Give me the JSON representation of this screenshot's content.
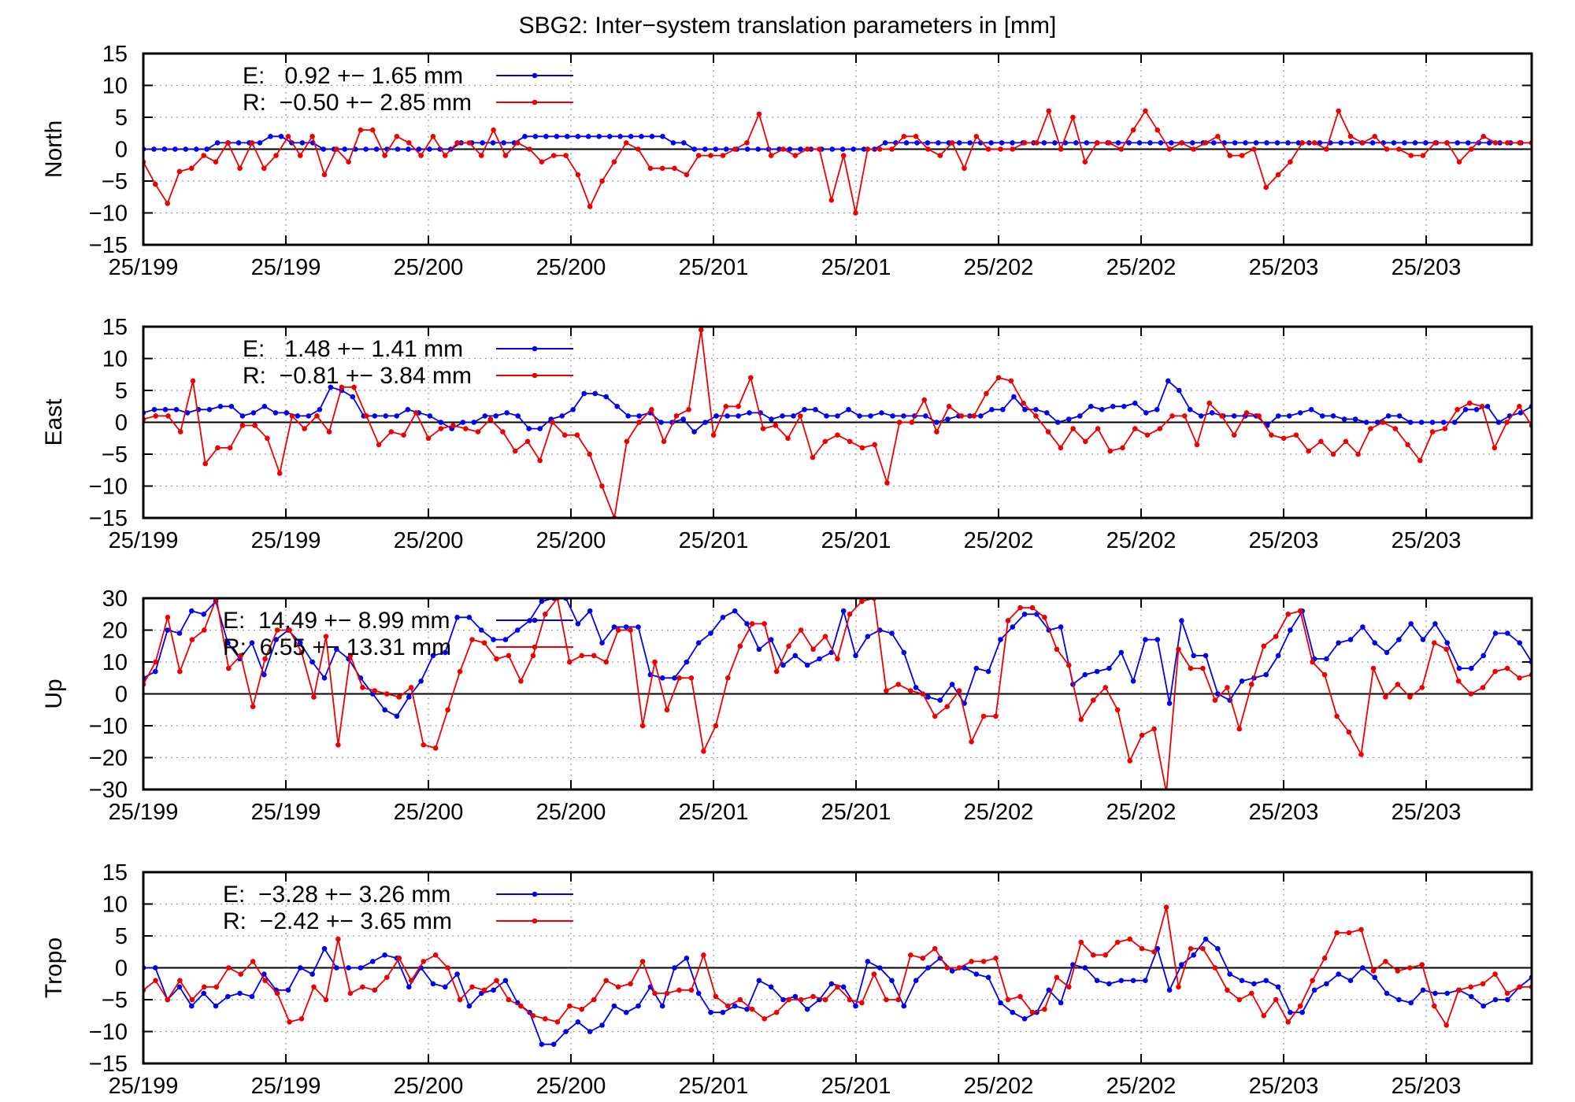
{
  "title": "SBG2: Inter−system translation parameters in [mm]",
  "colors": {
    "E": "#0000ee",
    "R": "#ee0000"
  },
  "chart_data": [
    {
      "type": "line",
      "ylabel": "North",
      "ylim": [
        -15,
        15
      ],
      "yticks": [
        "15",
        "10",
        "5",
        "0",
        "−5",
        "−10",
        "−15"
      ],
      "ytick_values": [
        15,
        10,
        5,
        0,
        -5,
        -10,
        -15
      ],
      "xtick_labels": [
        "25/199",
        "25/199",
        "25/200",
        "25/200",
        "25/201",
        "25/201",
        "25/202",
        "25/202",
        "25/203",
        "25/203"
      ],
      "grid": true,
      "legend_position": "top-left",
      "legend": [
        "E:   0.92 +− 1.65 mm",
        "R:  −0.50 +− 2.85 mm"
      ],
      "series": [
        {
          "name": "E",
          "values": [
            0,
            0,
            0,
            0,
            0,
            0,
            0,
            1,
            1,
            1,
            1,
            1,
            2,
            2,
            1,
            1,
            1,
            0,
            0,
            0,
            0,
            0,
            0,
            0,
            0,
            0,
            0,
            0,
            0,
            0,
            1,
            1,
            1,
            1,
            1,
            1,
            2,
            2,
            2,
            2,
            2,
            2,
            2,
            2,
            2,
            2,
            2,
            2,
            2,
            2,
            1,
            1,
            0,
            0,
            0,
            0,
            0,
            0,
            0,
            0,
            0,
            0,
            0,
            0,
            0,
            0,
            0,
            0,
            0,
            0,
            1,
            1,
            1,
            1,
            1,
            1,
            1,
            1,
            1,
            1,
            1,
            1,
            1,
            1,
            1,
            1,
            1,
            1,
            1,
            1,
            1,
            1,
            1,
            1,
            1,
            1,
            1,
            1,
            1,
            1,
            1,
            1,
            1,
            1,
            1,
            1,
            1,
            1,
            1,
            1,
            1,
            1,
            1,
            1,
            1,
            1,
            1,
            1,
            1,
            1,
            1,
            1,
            1,
            1,
            1,
            1,
            1,
            1,
            1,
            1,
            1,
            1
          ]
        },
        {
          "name": "R",
          "values": [
            -2,
            -5.5,
            -8.5,
            -3.5,
            -3,
            -1,
            -2,
            1,
            -3,
            1,
            -3,
            -1,
            2,
            -1,
            2,
            -4,
            0,
            -2,
            3,
            3,
            -1,
            2,
            1,
            -1,
            2,
            -1,
            1,
            1,
            -1,
            3,
            -1,
            1,
            0,
            -2,
            -1,
            -1,
            -4,
            -9,
            -5,
            -2,
            1,
            0,
            -3,
            -3,
            -3,
            -4,
            -1,
            -1,
            -1,
            0,
            1,
            5.5,
            -1,
            0,
            -1,
            0,
            0,
            -8,
            -1,
            -10,
            0,
            0,
            0,
            2,
            2,
            0,
            -1,
            1,
            -3,
            2,
            0,
            0,
            0,
            1,
            1,
            6,
            0,
            5,
            -2,
            1,
            1,
            0,
            3,
            6,
            3,
            0,
            1,
            0,
            1,
            2,
            -1,
            -1,
            0,
            -6,
            -4,
            -2,
            1,
            1,
            0,
            6,
            2,
            1,
            2,
            0,
            0,
            -1,
            -1,
            1,
            1,
            -2,
            0,
            2,
            1,
            1,
            1,
            1
          ]
        }
      ]
    },
    {
      "type": "line",
      "ylabel": "East",
      "ylim": [
        -15,
        15
      ],
      "yticks": [
        "15",
        "10",
        "5",
        "0",
        "−5",
        "−10",
        "−15"
      ],
      "ytick_values": [
        15,
        10,
        5,
        0,
        -5,
        -10,
        -15
      ],
      "xtick_labels": [
        "25/199",
        "25/199",
        "25/200",
        "25/200",
        "25/201",
        "25/201",
        "25/202",
        "25/202",
        "25/203",
        "25/203"
      ],
      "grid": true,
      "legend_position": "top-left",
      "legend": [
        "E:   1.48 +− 1.41 mm",
        "R:  −0.81 +− 3.84 mm"
      ],
      "series": [
        {
          "name": "E",
          "values": [
            1.5,
            2,
            2,
            2,
            1.5,
            2,
            2,
            2.5,
            2.5,
            1,
            1.5,
            2.5,
            1.5,
            1.5,
            1,
            1,
            2,
            5.5,
            5,
            4,
            1,
            1,
            1,
            1,
            2,
            1.5,
            1,
            0,
            -1,
            0,
            0,
            1,
            1,
            1.5,
            1,
            -1,
            -1,
            0.5,
            1,
            2,
            4.5,
            4.5,
            4,
            2.5,
            1,
            1,
            1.5,
            0,
            0,
            0.5,
            -1.5,
            0,
            1,
            1,
            1,
            1.5,
            1.5,
            0.5,
            1,
            1,
            2,
            2,
            1,
            1,
            2,
            1,
            1,
            1.5,
            1,
            1,
            1,
            1,
            0,
            0.5,
            1,
            1,
            1,
            2,
            2,
            4,
            2,
            2,
            1.5,
            0,
            0.5,
            1,
            2.5,
            2,
            2.5,
            2.5,
            3,
            1.5,
            2,
            6.5,
            5,
            2,
            1,
            1.5,
            1,
            1,
            1,
            1,
            -0.5,
            1,
            1,
            1.5,
            2,
            1,
            1,
            0.5,
            0.5,
            0,
            0,
            1,
            1,
            0,
            0,
            0,
            0,
            0,
            2,
            2,
            2.5,
            0,
            1,
            1.5,
            2.5
          ]
        },
        {
          "name": "R",
          "values": [
            0.5,
            1,
            1,
            -1.5,
            6.5,
            -6.5,
            -4,
            -4,
            -0.5,
            -0.5,
            -2.5,
            -8,
            1,
            -1,
            1,
            -1.5,
            5.5,
            5.5,
            1,
            -3.5,
            -1.5,
            -2,
            1.5,
            -2.5,
            -1,
            -0.5,
            -1,
            -1.5,
            0.5,
            -1.5,
            -4.5,
            -3,
            -6,
            0,
            -2,
            -2,
            -5,
            -10,
            -15,
            -3,
            0,
            2,
            -3,
            1,
            2,
            14.5,
            -2,
            2.5,
            2.5,
            7,
            -1,
            -0.5,
            -2.5,
            1,
            -5.5,
            -3,
            -2,
            -3,
            -4,
            -3.5,
            -9.5,
            0,
            0,
            3.5,
            -1.5,
            2.5,
            1,
            1,
            4.5,
            7,
            6.5,
            3,
            1,
            -1.5,
            -4,
            -1,
            -3,
            -1,
            -4.5,
            -4,
            -1,
            -2,
            -1,
            1,
            1,
            -3.5,
            3,
            1,
            -2,
            1.5,
            1,
            -2,
            -2.5,
            -2,
            -4.5,
            -3,
            -5,
            -3,
            -5,
            -1,
            0,
            -1,
            -3.5,
            -6,
            -1.5,
            -1,
            2,
            3,
            2.5,
            -4,
            0,
            2.5,
            -0.5
          ]
        }
      ]
    },
    {
      "type": "line",
      "ylabel": "Up",
      "ylim": [
        -30,
        30
      ],
      "yticks": [
        "30",
        "20",
        "10",
        "0",
        "−10",
        "−20",
        "−30"
      ],
      "ytick_values": [
        30,
        20,
        10,
        0,
        -10,
        -20,
        -30
      ],
      "xtick_labels": [
        "25/199",
        "25/199",
        "25/200",
        "25/200",
        "25/201",
        "25/201",
        "25/202",
        "25/202",
        "25/203",
        "25/203"
      ],
      "grid": true,
      "legend_position": "top-left",
      "legend": [
        "E:  14.49 +− 8.99 mm",
        "R:  6.55 +− 13.31 mm"
      ],
      "series": [
        {
          "name": "E",
          "values": [
            5,
            7,
            20,
            19,
            26,
            25,
            29,
            16,
            11,
            16,
            6,
            17,
            20,
            16,
            10,
            5,
            14,
            11,
            5,
            0,
            -5,
            -7,
            -1,
            4,
            12,
            13,
            24,
            24,
            20,
            17,
            17,
            20,
            23,
            29,
            30,
            30,
            22,
            26,
            16,
            21,
            21,
            21,
            6,
            5,
            5,
            10,
            16,
            19,
            24,
            26,
            22,
            14,
            17,
            9,
            12,
            9,
            11,
            13,
            26,
            12,
            18,
            20,
            19,
            13,
            2,
            -1,
            -2,
            3,
            -3,
            8,
            7,
            17,
            21,
            25,
            25,
            20,
            21,
            3,
            6,
            7,
            8,
            13,
            4,
            17,
            17,
            -3,
            23,
            12,
            12,
            0,
            -2,
            4,
            5,
            6,
            12,
            20,
            26,
            11,
            11,
            16,
            17,
            21,
            16,
            13,
            17,
            22,
            17,
            22,
            16,
            8,
            8,
            12,
            19,
            19,
            16,
            10
          ]
        },
        {
          "name": "R",
          "values": [
            3,
            10,
            24,
            7,
            17,
            20,
            30,
            8,
            12,
            -4,
            11,
            20,
            20,
            13,
            -1,
            18,
            -16,
            12,
            2,
            1,
            0,
            -1,
            2,
            -16,
            -17,
            -5,
            7,
            17,
            16,
            11,
            12,
            4,
            12,
            25,
            30,
            10,
            12,
            12,
            10,
            20,
            20,
            -10,
            10,
            -5,
            5,
            5,
            -18,
            -10,
            5,
            15,
            22,
            22,
            7,
            15,
            20,
            14,
            18,
            11,
            25,
            29,
            30,
            1,
            3,
            1,
            0,
            -7,
            -4,
            1,
            -15,
            -7,
            -7,
            23,
            27,
            27,
            24,
            14,
            9,
            -8,
            -2,
            2,
            -5,
            -21,
            -13,
            -11,
            -31,
            14,
            8,
            8,
            -2,
            2,
            -11,
            3,
            15,
            18,
            25,
            26,
            10,
            6,
            -7,
            -12,
            -19,
            8,
            -1,
            3,
            -1,
            2,
            16,
            14,
            4,
            0,
            2,
            7,
            8,
            5,
            6
          ]
        }
      ]
    },
    {
      "type": "line",
      "ylabel": "Tropo",
      "ylim": [
        -15,
        15
      ],
      "yticks": [
        "15",
        "10",
        "5",
        "0",
        "−5",
        "−10",
        "−15"
      ],
      "ytick_values": [
        15,
        10,
        5,
        0,
        -5,
        -10,
        -15
      ],
      "xtick_labels": [
        "25/199",
        "25/199",
        "25/200",
        "25/200",
        "25/201",
        "25/201",
        "25/202",
        "25/202",
        "25/203",
        "25/203"
      ],
      "grid": true,
      "legend_position": "top-left",
      "legend": [
        "E:  −3.28 +− 3.26 mm",
        "R:  −2.42 +− 3.65 mm"
      ],
      "series": [
        {
          "name": "E",
          "values": [
            0,
            0,
            -5,
            -3,
            -6,
            -4,
            -6,
            -4.5,
            -4,
            -4.5,
            -1,
            -3.5,
            -3.5,
            0,
            -1,
            3,
            0,
            0,
            0,
            1,
            2,
            1.5,
            -3,
            0,
            -2.5,
            -3,
            -1,
            -6,
            -4,
            -3.5,
            -2,
            -5.5,
            -7,
            -12,
            -12,
            -10,
            -8.5,
            -10,
            -9,
            -6,
            -7,
            -6,
            -3,
            -6,
            0,
            1.5,
            -4,
            -7,
            -7,
            -6,
            -6.5,
            -2,
            -3,
            -5,
            -4.5,
            -6.5,
            -5,
            -2.5,
            -3,
            -6,
            1,
            0,
            -2,
            -6,
            -2,
            0,
            1.5,
            -0.5,
            0,
            -1,
            -1.5,
            -5.5,
            -7,
            -8,
            -7,
            -3.5,
            -5.5,
            0.5,
            0,
            -2,
            -2.5,
            -2,
            -2,
            -2,
            3,
            -3.5,
            0.5,
            2,
            4.5,
            3,
            -1,
            -2,
            -2.5,
            -2,
            -3,
            -7,
            -7,
            -3.5,
            -2.5,
            -1,
            -2,
            0,
            -1.5,
            -4,
            -5,
            -5.5,
            -3.5,
            -4,
            -4,
            -3.5,
            -4.5,
            -6,
            -5,
            -5,
            -3,
            -1.5
          ]
        },
        {
          "name": "R",
          "values": [
            -3.5,
            -2,
            -5,
            -2,
            -5,
            -3,
            -3,
            0,
            -1,
            1,
            -2,
            -4,
            -8.5,
            -8,
            -3,
            -5,
            4.5,
            -4,
            -3,
            -3.5,
            -1.5,
            1.5,
            -2,
            1,
            2,
            0,
            -5,
            -3,
            -3.5,
            -2,
            -5,
            -6,
            -7.5,
            -8,
            -8.5,
            -6,
            -6.5,
            -5,
            -2,
            -3,
            -2.5,
            1,
            -4,
            -4,
            -3.5,
            -3.5,
            2,
            -4.5,
            -6,
            -5,
            -6.5,
            -8,
            -7,
            -5,
            -5,
            -4.5,
            -5,
            -3,
            -5,
            -5.5,
            -1,
            -5,
            -5,
            2,
            1.5,
            3,
            0,
            0,
            1,
            1,
            1.5,
            -5,
            -4.5,
            -7,
            -6.5,
            -1.5,
            -3,
            4,
            2,
            2,
            4,
            4.5,
            3,
            2.5,
            9.5,
            -3,
            3,
            3,
            0,
            -3.5,
            -5,
            -4,
            -7.5,
            -5,
            -8.5,
            -6,
            -2,
            1.5,
            5.5,
            5.5,
            6,
            -0.5,
            1,
            -0.5,
            0,
            0.5,
            -6,
            -9,
            -3.5,
            -3,
            -2.5,
            -1,
            -4,
            -3,
            -3
          ]
        }
      ]
    }
  ]
}
